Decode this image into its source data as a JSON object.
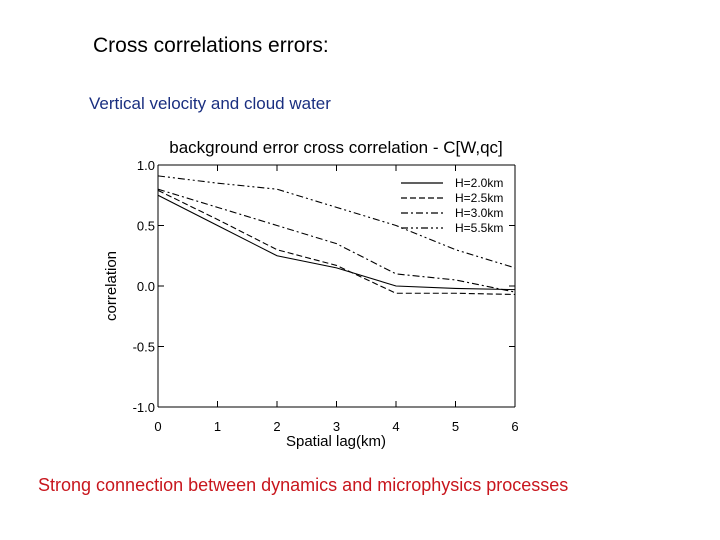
{
  "slide": {
    "title": "Cross correlations errors:",
    "subtitle": "Vertical velocity and cloud water",
    "footer": "Strong connection between dynamics and microphysics processes"
  },
  "chart_data": {
    "type": "line",
    "title": "background error cross correlation - C[W,qc]",
    "xlabel": "Spatial lag(km)",
    "ylabel": "correlation",
    "xlim": [
      0,
      6
    ],
    "ylim": [
      -1.0,
      1.0
    ],
    "xticks": [
      0,
      1,
      2,
      3,
      4,
      5,
      6
    ],
    "yticks": [
      -1.0,
      -0.5,
      0.0,
      0.5,
      1.0
    ],
    "ytick_labels": [
      "-1.0",
      "-0.5",
      "0.0",
      "0.5",
      "1.0"
    ],
    "grid": false,
    "legend_position": "top-right",
    "series": [
      {
        "name": "H=2.0km",
        "style": "solid",
        "x": [
          0,
          1,
          2,
          3,
          4,
          5,
          6
        ],
        "y": [
          0.75,
          0.5,
          0.25,
          0.15,
          0.0,
          -0.02,
          -0.03
        ]
      },
      {
        "name": "H=2.5km",
        "style": "dashed",
        "x": [
          0,
          1,
          2,
          3,
          4,
          5,
          6
        ],
        "y": [
          0.79,
          0.55,
          0.3,
          0.17,
          -0.06,
          -0.06,
          -0.07
        ]
      },
      {
        "name": "H=3.0km",
        "style": "dashdot",
        "x": [
          0,
          1,
          2,
          3,
          4,
          5,
          6
        ],
        "y": [
          0.8,
          0.65,
          0.5,
          0.35,
          0.1,
          0.05,
          -0.05
        ]
      },
      {
        "name": "H=5.5km",
        "style": "dashdotdot",
        "x": [
          0,
          1,
          2,
          3,
          4,
          5,
          6
        ],
        "y": [
          0.91,
          0.85,
          0.8,
          0.65,
          0.5,
          0.3,
          0.15
        ]
      }
    ],
    "colors": {
      "lines": "#000000",
      "axes": "#000000"
    }
  }
}
